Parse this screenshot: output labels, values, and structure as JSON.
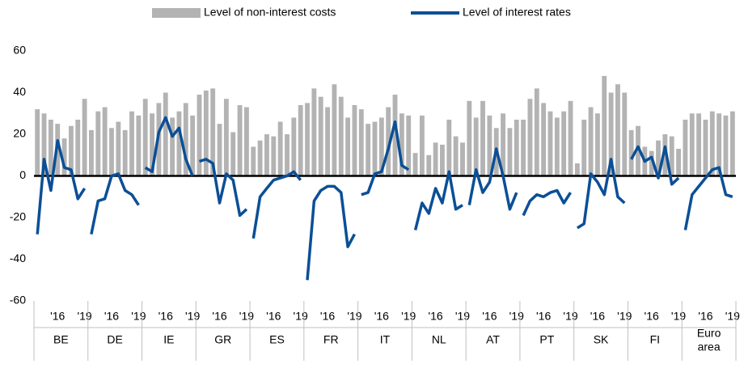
{
  "chart_data": {
    "type": "bar",
    "groups": [
      "BE",
      "DE",
      "IE",
      "GR",
      "ES",
      "FR",
      "IT",
      "NL",
      "AT",
      "PT",
      "SK",
      "FI",
      "Euro area"
    ],
    "sub_categories": [
      null,
      null,
      null,
      "'16",
      null,
      null,
      null,
      "'19"
    ],
    "series": [
      {
        "name": "Level of non-interest costs",
        "type": "bar",
        "color": "#b3b3b3",
        "values": [
          [
            32,
            30,
            27,
            25,
            18,
            24,
            27,
            37
          ],
          [
            22,
            31,
            33,
            23,
            26,
            22,
            31,
            29
          ],
          [
            37,
            30,
            35,
            40,
            28,
            31,
            35,
            29
          ],
          [
            39,
            41,
            42,
            25,
            37,
            21,
            34,
            33
          ],
          [
            14,
            17,
            20,
            19,
            26,
            20,
            28,
            34
          ],
          [
            35,
            42,
            38,
            33,
            44,
            38,
            28,
            34
          ],
          [
            32,
            25,
            26,
            28,
            33,
            39,
            30,
            29
          ],
          [
            11,
            29,
            10,
            16,
            15,
            27,
            19,
            16
          ],
          [
            36,
            28,
            36,
            29,
            23,
            30,
            23,
            27
          ],
          [
            27,
            37,
            42,
            35,
            31,
            28,
            31,
            36
          ],
          [
            6,
            27,
            33,
            30,
            48,
            40,
            44,
            40
          ],
          [
            22,
            24,
            14,
            12,
            17,
            20,
            19,
            13
          ],
          [
            27,
            30,
            30,
            27,
            31,
            30,
            29,
            31
          ]
        ]
      },
      {
        "name": "Level of interest rates",
        "type": "line",
        "color": "#0b4f96",
        "values": [
          [
            -28,
            8,
            -7,
            17,
            4,
            3,
            -11,
            -6
          ],
          [
            -28,
            -12,
            -11,
            0,
            1,
            -7,
            -9,
            -14
          ],
          [
            4,
            2,
            21,
            28,
            19,
            23,
            8,
            0
          ],
          [
            7,
            8,
            6,
            -13,
            1,
            -2,
            -19,
            -16
          ],
          [
            -30,
            -10,
            -6,
            -2,
            -1,
            0,
            2,
            -2
          ],
          [
            -50,
            -12,
            -7,
            -5,
            -5,
            -8,
            -34,
            -28
          ],
          [
            -9,
            -8,
            1,
            2,
            13,
            26,
            5,
            3
          ],
          [
            -26,
            -13,
            -18,
            -6,
            -13,
            2,
            -16,
            -14
          ],
          [
            -14,
            3,
            -8,
            -3,
            13,
            0,
            -16,
            -8
          ],
          [
            -19,
            -12,
            -9,
            -10,
            -8,
            -7,
            -13,
            -8
          ],
          [
            -25,
            -23,
            1,
            -3,
            -9,
            8,
            -10,
            -13
          ],
          [
            8,
            14,
            7,
            9,
            -1,
            14,
            -4,
            -1
          ],
          [
            -26,
            -9,
            -5,
            -1,
            3,
            4,
            -9,
            -10
          ]
        ]
      }
    ],
    "ylim": [
      -60,
      60
    ],
    "yticks": [
      -60,
      -40,
      -20,
      0,
      20,
      40,
      60
    ],
    "grid": false,
    "legend": "top"
  }
}
